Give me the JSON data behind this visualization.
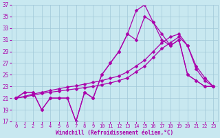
{
  "background_color": "#c8e8f0",
  "grid_color": "#a0c8d8",
  "line_color": "#aa00aa",
  "xlabel": "Windchill (Refroidissement éolien,°C)",
  "xlabel_color": "#aa00aa",
  "tick_color": "#aa00aa",
  "ylim": [
    17,
    37
  ],
  "yticks": [
    17,
    19,
    21,
    23,
    25,
    27,
    29,
    31,
    33,
    35,
    37
  ],
  "xlim": [
    -0.5,
    23.5
  ],
  "xticks": [
    0,
    1,
    2,
    3,
    4,
    5,
    6,
    7,
    8,
    9,
    10,
    11,
    12,
    13,
    14,
    15,
    16,
    17,
    18,
    19,
    20,
    21,
    22,
    23
  ],
  "hours": [
    0,
    1,
    2,
    3,
    4,
    5,
    6,
    7,
    8,
    9,
    10,
    11,
    12,
    13,
    14,
    15,
    16,
    17,
    18,
    19,
    20,
    21,
    22,
    23
  ],
  "series_jagged": [
    21,
    22,
    22,
    19,
    21,
    21,
    21,
    17,
    22,
    21,
    25,
    27,
    29,
    32,
    31,
    35,
    34,
    31,
    30,
    31,
    25,
    24,
    23,
    23
  ],
  "series_peak": [
    21,
    22,
    22,
    19,
    21,
    21,
    21,
    17,
    22,
    21,
    25,
    27,
    29,
    32,
    36,
    37,
    34,
    32,
    30,
    31,
    25,
    24,
    23,
    23
  ],
  "series_linear1": [
    21,
    21.3,
    21.7,
    22,
    22.3,
    22.6,
    22.9,
    23.1,
    23.4,
    23.7,
    24,
    24.4,
    24.8,
    25.5,
    26.5,
    27.5,
    29,
    30.5,
    31.5,
    32,
    30,
    26.5,
    24.5,
    23
  ],
  "series_linear2": [
    21,
    21.2,
    21.5,
    21.8,
    22,
    22.2,
    22.4,
    22.6,
    22.8,
    23,
    23.3,
    23.6,
    24,
    24.5,
    25.5,
    26.5,
    28,
    29.5,
    30.5,
    31.5,
    30,
    26,
    24,
    23
  ],
  "markersize": 2.5,
  "linewidth": 0.9
}
